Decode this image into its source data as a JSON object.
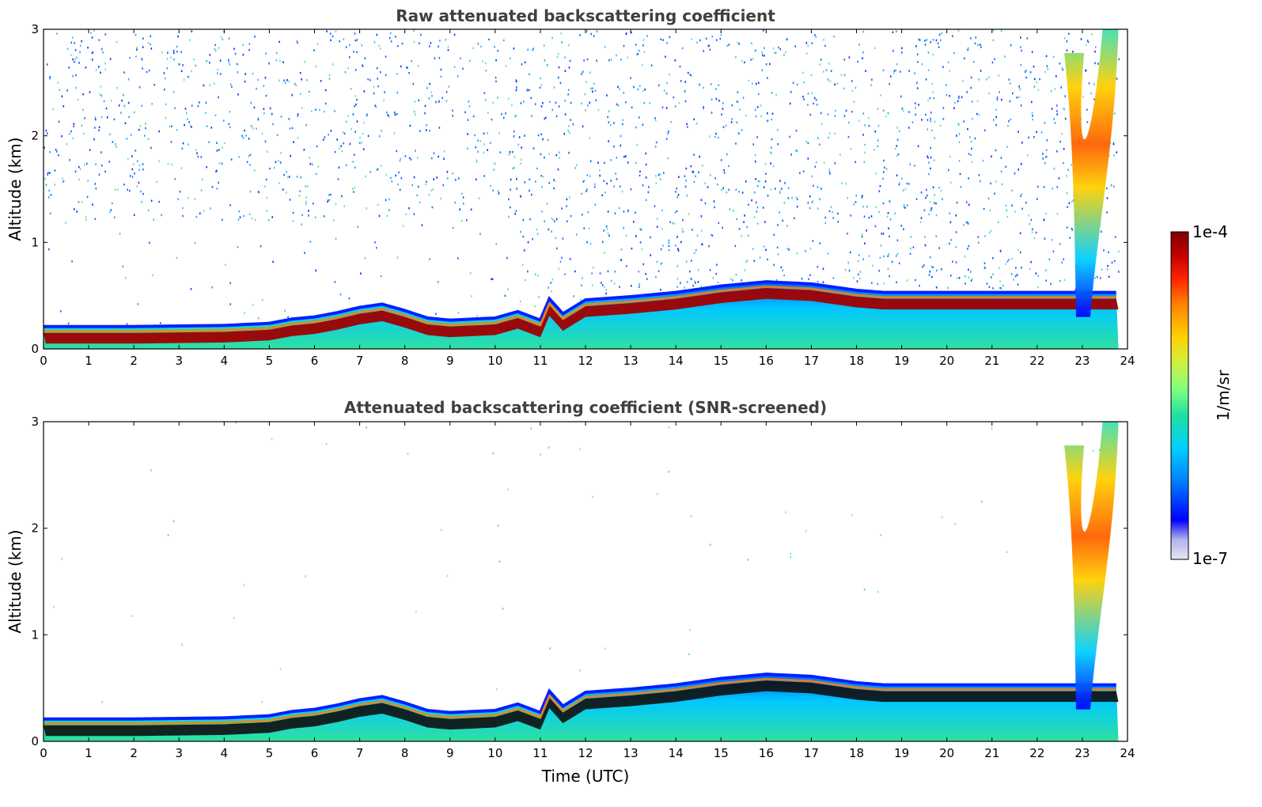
{
  "chart_data": [
    {
      "type": "heatmap",
      "title": "Raw attenuated backscattering coefficient",
      "xlabel": "",
      "ylabel": "Altitude (km)",
      "xlim": [
        0,
        24
      ],
      "ylim": [
        0,
        3
      ],
      "x_ticks": [
        "0",
        "1",
        "2",
        "3",
        "4",
        "5",
        "6",
        "7",
        "8",
        "9",
        "10",
        "11",
        "12",
        "13",
        "14",
        "15",
        "16",
        "17",
        "18",
        "19",
        "20",
        "21",
        "22",
        "23",
        "24"
      ],
      "y_ticks": [
        "0",
        "1",
        "2",
        "3"
      ],
      "boundary_layer_top_km": {
        "time_utc": [
          0,
          2,
          4,
          5,
          5.5,
          6,
          6.5,
          7,
          7.5,
          8,
          8.5,
          9,
          10,
          10.5,
          11,
          11.2,
          11.5,
          12,
          13,
          14,
          15,
          16,
          17,
          18,
          18.6
        ],
        "altitude_km": [
          0.12,
          0.12,
          0.13,
          0.15,
          0.19,
          0.21,
          0.25,
          0.3,
          0.33,
          0.27,
          0.2,
          0.18,
          0.2,
          0.26,
          0.18,
          0.38,
          0.24,
          0.37,
          0.4,
          0.44,
          0.5,
          0.54,
          0.52,
          0.46,
          0.44
        ]
      },
      "plume": {
        "time_utc": [
          22.6,
          23.8
        ],
        "altitude_km": [
          0.3,
          3.0
        ]
      },
      "colorscale": "jet",
      "zlim": [
        "1e-7",
        "1e-4"
      ],
      "zlabel": "1/m/sr"
    },
    {
      "type": "heatmap",
      "title": "Attenuated backscattering coefficient (SNR-screened)",
      "xlabel": "Time (UTC)",
      "ylabel": "Altitude (km)",
      "xlim": [
        0,
        24
      ],
      "ylim": [
        0,
        3
      ],
      "x_ticks": [
        "0",
        "1",
        "2",
        "3",
        "4",
        "5",
        "6",
        "7",
        "8",
        "9",
        "10",
        "11",
        "12",
        "13",
        "14",
        "15",
        "16",
        "17",
        "18",
        "19",
        "20",
        "21",
        "22",
        "23",
        "24"
      ],
      "y_ticks": [
        "0",
        "1",
        "2",
        "3"
      ],
      "colorscale": "jet",
      "zlim": [
        "1e-7",
        "1e-4"
      ],
      "zlabel": "1/m/sr"
    }
  ],
  "colorbar": {
    "max_label": "1e-4",
    "min_label": "1e-7",
    "unit_label": "1/m/sr",
    "colors": [
      "#e6e6f5",
      "#b3b3ec",
      "#0000ff",
      "#0080ff",
      "#00d0ff",
      "#20e0a0",
      "#80ff80",
      "#d0f040",
      "#ffd000",
      "#ff8000",
      "#ff2000",
      "#c00000",
      "#800000"
    ]
  }
}
